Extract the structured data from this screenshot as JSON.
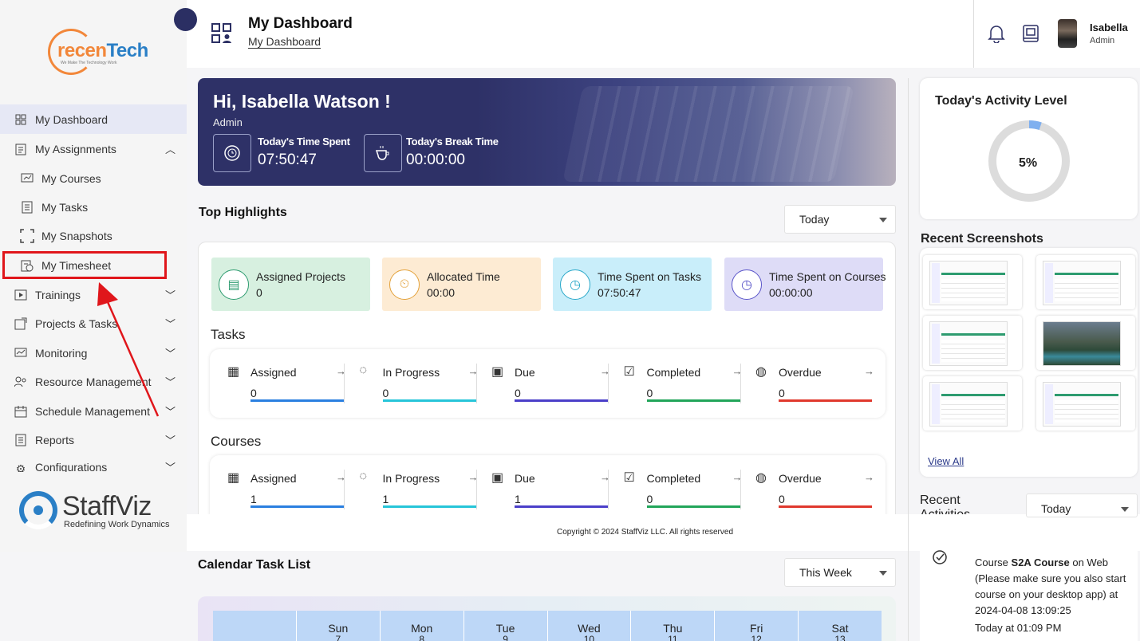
{
  "brand": {
    "logo_text_a": "recen",
    "logo_text_b": "Tech",
    "logo_tagline": "We Make The Technology Work",
    "footer_brand": "StaffViz",
    "footer_slogan": "Redefining Work Dynamics"
  },
  "sidebar": {
    "items": [
      {
        "label": "My Dashboard",
        "icon": "dashboard-grid-icon"
      },
      {
        "label": "My Assignments",
        "icon": "clipboard-icon"
      },
      {
        "label": "My Courses",
        "icon": "courses-icon"
      },
      {
        "label": "My Tasks",
        "icon": "tasks-list-icon"
      },
      {
        "label": "My Snapshots",
        "icon": "snapshot-frame-icon"
      },
      {
        "label": "My Timesheet",
        "icon": "timesheet-icon"
      },
      {
        "label": "Trainings",
        "icon": "play-icon"
      },
      {
        "label": "Projects & Tasks",
        "icon": "projects-icon"
      },
      {
        "label": "Monitoring",
        "icon": "monitoring-icon"
      },
      {
        "label": "Resource Management",
        "icon": "people-icon"
      },
      {
        "label": "Schedule Management",
        "icon": "schedule-icon"
      },
      {
        "label": "Reports",
        "icon": "reports-icon"
      },
      {
        "label": "Configurations",
        "icon": "gear-icon"
      }
    ]
  },
  "header": {
    "title": "My Dashboard",
    "breadcrumb": "My Dashboard",
    "user_name": "Isabella",
    "user_role": "Admin"
  },
  "banner": {
    "greeting": "Hi, Isabella Watson !",
    "role": "Admin",
    "time_spent_label": "Today's Time Spent",
    "time_spent_value": "07:50:47",
    "break_label": "Today's Break Time",
    "break_value": "00:00:00"
  },
  "highlights": {
    "title": "Top Highlights",
    "filter": "Today",
    "stats": [
      {
        "label": "Assigned Projects",
        "value": "0",
        "bg": "#d7f0e0",
        "accent": "#2d9b6f"
      },
      {
        "label": "Allocated Time",
        "value": "00:00",
        "bg": "#fdebd3",
        "accent": "#e3a23c"
      },
      {
        "label": "Time Spent on Tasks",
        "value": "07:50:47",
        "bg": "#c9eefa",
        "accent": "#2aa8c9"
      },
      {
        "label": "Time Spent on Courses",
        "value": "00:00:00",
        "bg": "#dedcf7",
        "accent": "#5a55c9"
      }
    ],
    "tasks_title": "Tasks",
    "tasks": [
      {
        "label": "Assigned",
        "value": "0",
        "color": "#2a7fe0"
      },
      {
        "label": "In Progress",
        "value": "0",
        "color": "#27c5d9"
      },
      {
        "label": "Due",
        "value": "0",
        "color": "#4b3fc9"
      },
      {
        "label": "Completed",
        "value": "0",
        "color": "#22a55a"
      },
      {
        "label": "Overdue",
        "value": "0",
        "color": "#e0382d"
      }
    ],
    "courses_title": "Courses",
    "courses": [
      {
        "label": "Assigned",
        "value": "1",
        "color": "#2a7fe0"
      },
      {
        "label": "In Progress",
        "value": "1",
        "color": "#27c5d9"
      },
      {
        "label": "Due",
        "value": "1",
        "color": "#4b3fc9"
      },
      {
        "label": "Completed",
        "value": "0",
        "color": "#22a55a"
      },
      {
        "label": "Overdue",
        "value": "0",
        "color": "#e0382d"
      }
    ]
  },
  "footer": {
    "copyright": "Copyright © 2024 StaffViz LLC. All rights reserved"
  },
  "calendar": {
    "title": "Calendar Task List",
    "filter": "This Week",
    "days": [
      {
        "name": "",
        "date": ""
      },
      {
        "name": "Sun",
        "date": "7"
      },
      {
        "name": "Mon",
        "date": "8"
      },
      {
        "name": "Tue",
        "date": "9"
      },
      {
        "name": "Wed",
        "date": "10"
      },
      {
        "name": "Thu",
        "date": "11"
      },
      {
        "name": "Fri",
        "date": "12"
      },
      {
        "name": "Sat",
        "date": "13"
      }
    ]
  },
  "activity": {
    "title": "Today's Activity Level",
    "percent_text": "5%",
    "percent": 5
  },
  "screenshots": {
    "title": "Recent Screenshots",
    "view_all": "View All"
  },
  "recent_activities": {
    "title": "Recent Activities",
    "filter": "Today",
    "item_prefix": "Course ",
    "item_course": "S2A Course",
    "item_text": " on Web (Please make sure you also start course on your desktop app) at 2024-04-08 13:09:25",
    "item_time": "Today at 01:09 PM"
  },
  "colors": {
    "banner": "#2e3167",
    "highlight_box": "#e0161b",
    "sidebar_active": "#e6e8f5"
  }
}
